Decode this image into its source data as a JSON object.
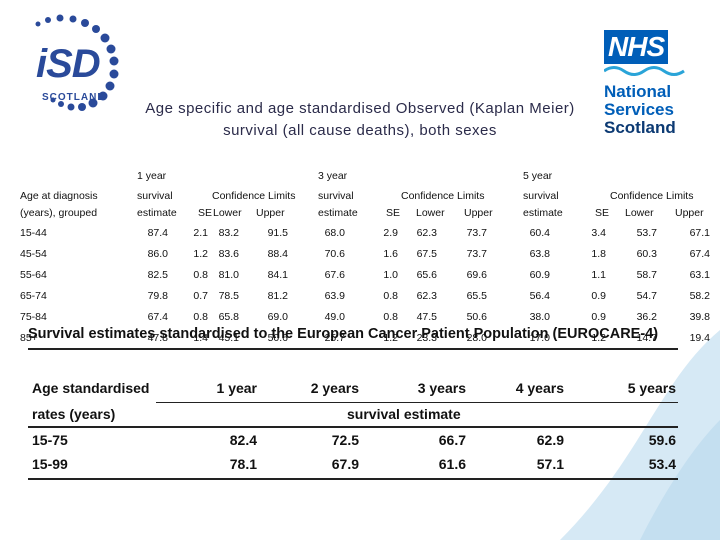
{
  "isd_logo": {
    "mark": "iSD",
    "sub": "SCOTLAND"
  },
  "nhs_logo": {
    "badge": "NHS",
    "line1": "National",
    "line2": "Services",
    "line3": "Scotland"
  },
  "title": [
    "Age specific and age standardised Observed (Kaplan Meier)",
    "survival (all cause deaths), both sexes"
  ],
  "table1": {
    "period_headers": [
      "1 year",
      "3 year",
      "5 year"
    ],
    "row_header_line1": "Age at diagnosis",
    "row_header_line2": "(years), grouped",
    "survival_line1": "survival",
    "survival_line2": "estimate",
    "confidence_label": "Confidence Limits",
    "se_label": "SE",
    "lower_label": "Lower",
    "upper_label": "Upper",
    "rows": [
      {
        "age": "15-44",
        "v": [
          "87.4",
          "2.1",
          "83.2",
          "91.5",
          "68.0",
          "2.9",
          "62.3",
          "73.7",
          "60.4",
          "3.4",
          "53.7",
          "67.1"
        ]
      },
      {
        "age": "45-54",
        "v": [
          "86.0",
          "1.2",
          "83.6",
          "88.4",
          "70.6",
          "1.6",
          "67.5",
          "73.7",
          "63.8",
          "1.8",
          "60.3",
          "67.4"
        ]
      },
      {
        "age": "55-64",
        "v": [
          "82.5",
          "0.8",
          "81.0",
          "84.1",
          "67.6",
          "1.0",
          "65.6",
          "69.6",
          "60.9",
          "1.1",
          "58.7",
          "63.1"
        ]
      },
      {
        "age": "65-74",
        "v": [
          "79.8",
          "0.7",
          "78.5",
          "81.2",
          "63.9",
          "0.8",
          "62.3",
          "65.5",
          "56.4",
          "0.9",
          "54.7",
          "58.2"
        ]
      },
      {
        "age": "75-84",
        "v": [
          "67.4",
          "0.8",
          "65.8",
          "69.0",
          "49.0",
          "0.8",
          "47.5",
          "50.6",
          "38.0",
          "0.9",
          "36.2",
          "39.8"
        ]
      },
      {
        "age": "85+",
        "v": [
          "47.8",
          "1.4",
          "45.1",
          "50.6",
          "25.7",
          "1.2",
          "23.3",
          "28.0",
          "17.0",
          "1.2",
          "14.7",
          "19.4"
        ]
      }
    ]
  },
  "table2": {
    "title": "Survival estimates standardised to the European Cancer Patient Population (EUROCARE-4)",
    "header_line1": "Age standardised",
    "header_line2": "rates (years)",
    "columns": [
      "1 year",
      "2 years",
      "3 years",
      "4 years",
      "5 years"
    ],
    "subheader": "survival estimate",
    "rows": [
      {
        "label": "15-75",
        "v": [
          "82.4",
          "72.5",
          "66.7",
          "62.9",
          "59.6"
        ]
      },
      {
        "label": "15-99",
        "v": [
          "78.1",
          "67.9",
          "61.6",
          "57.1",
          "53.4"
        ]
      }
    ]
  },
  "colors": {
    "wave": "#d6e9f5",
    "nhs_blue": "#005eb8",
    "isd_blue": "#2a4a9a"
  }
}
